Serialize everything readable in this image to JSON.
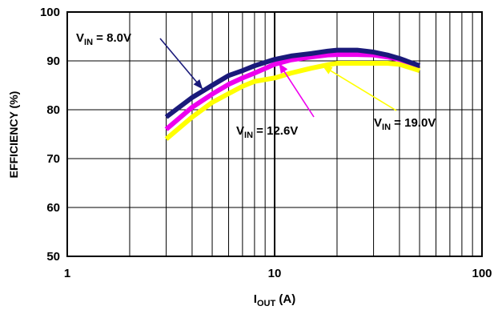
{
  "chart_data": {
    "type": "line",
    "xlabel": {
      "main": "I",
      "sub": "OUT",
      "tail": " (A)"
    },
    "ylabel": "EFFICIENCY (%)",
    "xscale": "log",
    "xlim": [
      1,
      100
    ],
    "ylim": [
      50,
      100
    ],
    "x_ticks": [
      "1",
      "10",
      "100"
    ],
    "y_ticks": [
      "50",
      "60",
      "70",
      "80",
      "90",
      "100"
    ],
    "grid": true,
    "series": [
      {
        "name": "8.0V",
        "label": {
          "main": "V",
          "sub": "IN",
          "tail": " = 8.0V"
        },
        "color": "#1a1a7a",
        "x": [
          3,
          4,
          5,
          6,
          7,
          8,
          10,
          12,
          15,
          18,
          20,
          25,
          30,
          35,
          40,
          50
        ],
        "y": [
          78.5,
          82.5,
          85.0,
          87.0,
          88.0,
          89.0,
          90.3,
          91.0,
          91.5,
          92.0,
          92.2,
          92.2,
          91.8,
          91.2,
          90.5,
          89.0
        ]
      },
      {
        "name": "12.6V",
        "label": {
          "main": "V",
          "sub": "IN",
          "tail": " = 12.6V"
        },
        "color": "#ee00ee",
        "x": [
          3,
          4,
          5,
          6,
          7,
          8,
          10,
          12,
          15,
          18,
          20,
          25,
          30,
          35,
          40,
          50
        ],
        "y": [
          76.0,
          80.5,
          83.2,
          85.2,
          86.5,
          87.5,
          89.3,
          90.2,
          90.8,
          91.2,
          91.3,
          91.3,
          91.2,
          90.8,
          90.3,
          89.0
        ]
      },
      {
        "name": "19.0V",
        "label": {
          "main": "V",
          "sub": "IN",
          "tail": " = 19.0V"
        },
        "color": "#ffff00",
        "x": [
          3,
          4,
          5,
          6,
          7,
          8,
          10,
          12,
          15,
          18,
          20,
          25,
          30,
          35,
          40,
          50
        ],
        "y": [
          74.0,
          78.5,
          81.5,
          83.3,
          84.8,
          85.8,
          86.5,
          87.5,
          88.5,
          89.2,
          89.5,
          89.5,
          89.5,
          89.5,
          89.3,
          88.0
        ]
      }
    ]
  }
}
